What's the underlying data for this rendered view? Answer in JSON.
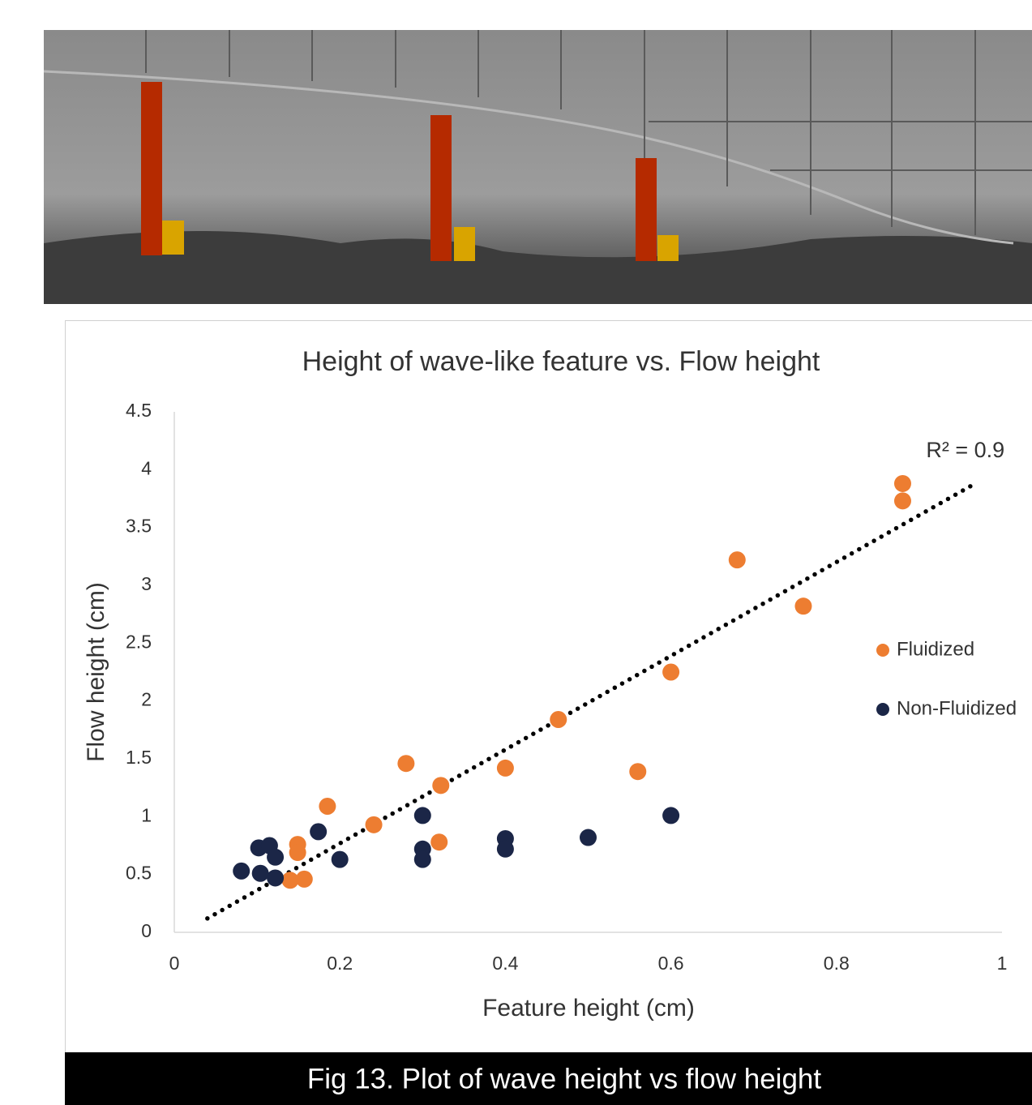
{
  "chart_data": {
    "type": "scatter",
    "title": "Height of wave-like feature vs. Flow height",
    "xlabel": "Feature height (cm)",
    "ylabel": "Flow height (cm)",
    "xlim": [
      0,
      1
    ],
    "ylim": [
      0,
      4.5
    ],
    "xticks": [
      0,
      0.2,
      0.4,
      0.6,
      0.8,
      1
    ],
    "yticks": [
      0,
      0.5,
      1,
      1.5,
      2,
      2.5,
      3,
      3.5,
      4,
      4.5
    ],
    "grid": false,
    "legend": "right",
    "series": [
      {
        "name": "Fluidized",
        "color": "#ed7d31",
        "x": [
          0.88,
          0.88,
          0.68,
          0.76,
          0.6,
          0.464,
          0.28,
          0.4,
          0.56,
          0.322,
          0.185,
          0.241,
          0.32,
          0.149,
          0.149,
          0.14,
          0.157
        ],
        "values": [
          3.88,
          3.73,
          3.22,
          2.82,
          2.25,
          1.84,
          1.46,
          1.42,
          1.39,
          1.27,
          1.09,
          0.93,
          0.78,
          0.76,
          0.69,
          0.45,
          0.46
        ]
      },
      {
        "name": "Non-Fluidized",
        "color": "#1b2647",
        "x": [
          0.6,
          0.3,
          0.5,
          0.4,
          0.4,
          0.3,
          0.3,
          0.174,
          0.2,
          0.102,
          0.115,
          0.122,
          0.081,
          0.104,
          0.122
        ],
        "values": [
          1.01,
          1.01,
          0.82,
          0.81,
          0.72,
          0.72,
          0.63,
          0.87,
          0.63,
          0.73,
          0.75,
          0.65,
          0.53,
          0.51,
          0.47
        ]
      }
    ],
    "trendline": {
      "x": [
        0.04,
        0.97
      ],
      "y": [
        0.12,
        3.89
      ],
      "label": "R² = 0.9",
      "color": "#000000"
    }
  },
  "caption": "Fig 13. Plot of wave height vs flow height"
}
